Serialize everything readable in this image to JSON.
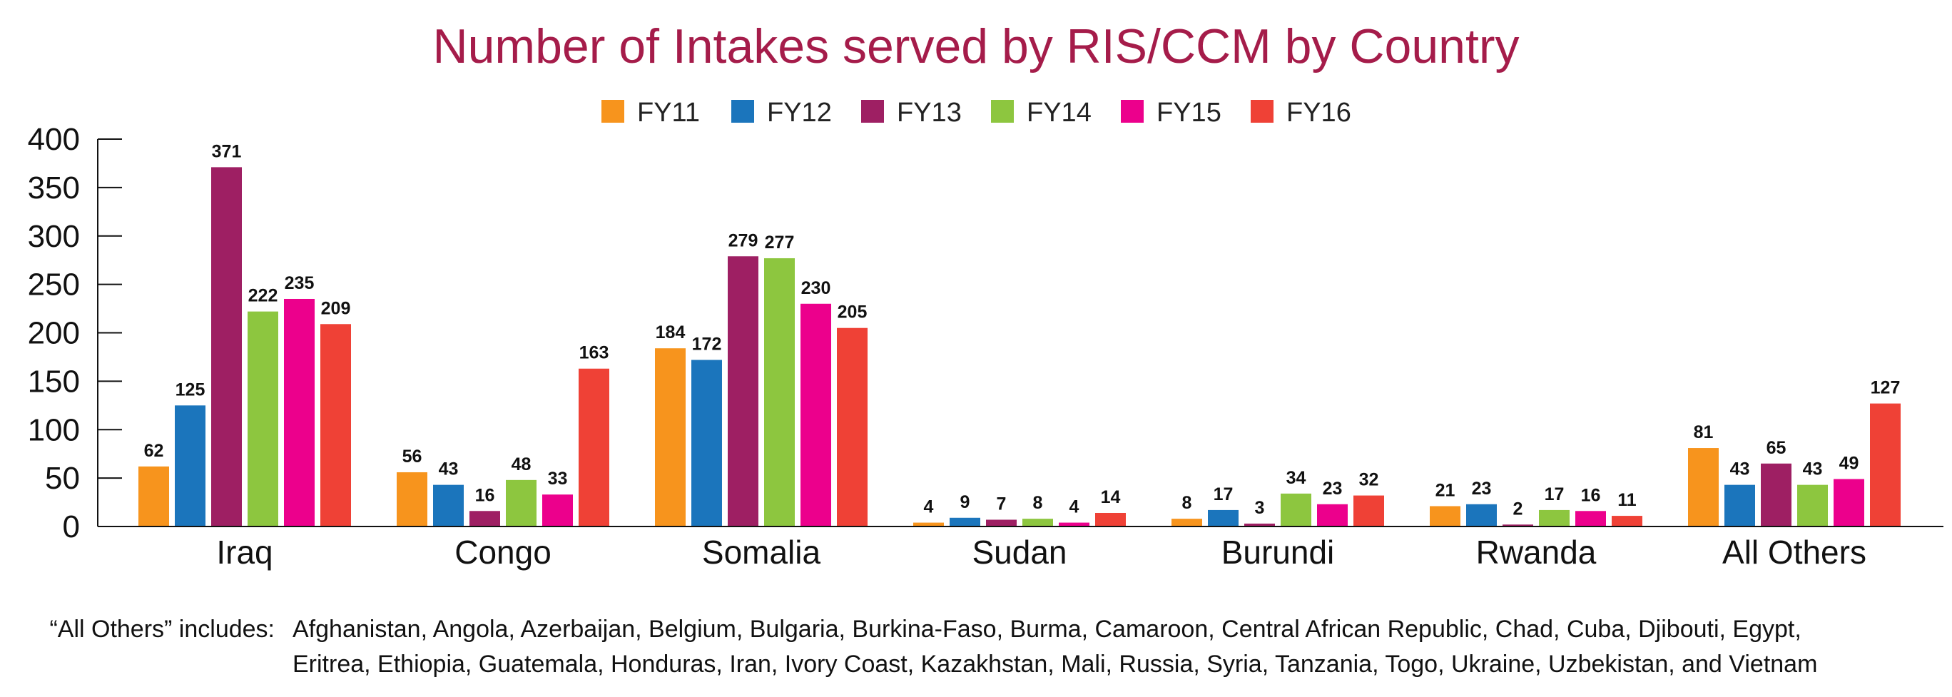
{
  "chart_data": {
    "type": "bar",
    "title": "Number of Intakes served by RIS/CCM by Country",
    "xlabel": "",
    "ylabel": "",
    "ylim": [
      0,
      400
    ],
    "yticks": [
      0,
      50,
      100,
      150,
      200,
      250,
      300,
      350,
      400
    ],
    "categories": [
      "Iraq",
      "Congo",
      "Somalia",
      "Sudan",
      "Burundi",
      "Rwanda",
      "All Others"
    ],
    "legend_position": "top-center",
    "grid": false,
    "series": [
      {
        "name": "FY11",
        "color": "#f7941d",
        "values": [
          62,
          56,
          184,
          4,
          8,
          21,
          81
        ]
      },
      {
        "name": "FY12",
        "color": "#1b75bc",
        "values": [
          125,
          43,
          172,
          9,
          17,
          23,
          43
        ]
      },
      {
        "name": "FY13",
        "color": "#9e1f63",
        "values": [
          371,
          16,
          279,
          7,
          3,
          2,
          65
        ]
      },
      {
        "name": "FY14",
        "color": "#8dc63f",
        "values": [
          222,
          48,
          277,
          8,
          34,
          17,
          43
        ]
      },
      {
        "name": "FY15",
        "color": "#ec008c",
        "values": [
          235,
          33,
          230,
          4,
          23,
          16,
          49
        ]
      },
      {
        "name": "FY16",
        "color": "#ef4136",
        "values": [
          209,
          163,
          205,
          14,
          32,
          11,
          127
        ]
      }
    ]
  },
  "footnote": {
    "label": "“All Others” includes:",
    "line1": "Afghanistan, Angola, Azerbaijan, Belgium, Bulgaria, Burkina-Faso, Burma, Camaroon, Central African Republic, Chad, Cuba, Djibouti, Egypt,",
    "line2": "Eritrea, Ethiopia, Guatemala, Honduras, Iran, Ivory Coast, Kazakhstan, Mali, Russia, Syria, Tanzania, Togo, Ukraine, Uzbekistan, and Vietnam"
  }
}
